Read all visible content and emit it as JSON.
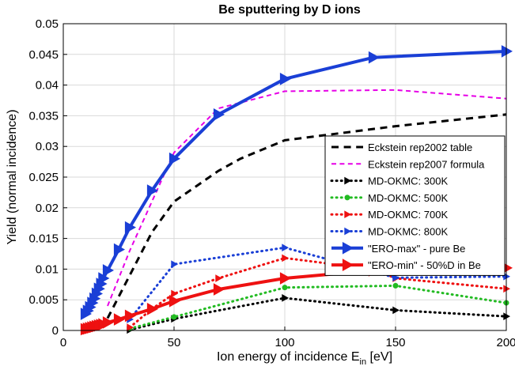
{
  "chart_data": {
    "type": "line",
    "title": "Be sputtering by D ions",
    "xlabel": "Ion energy of incidence E",
    "xlabel_sub": "in",
    "xlabel_unit": " [eV]",
    "ylabel": "Yield (normal incidence)",
    "xlim": [
      0,
      200
    ],
    "ylim": [
      0,
      0.05
    ],
    "xticks": [
      0,
      50,
      100,
      150,
      200
    ],
    "xtick_labels": [
      "0",
      "50",
      "100",
      "150",
      "200"
    ],
    "yticks": [
      0,
      0.005,
      0.01,
      0.015,
      0.02,
      0.025,
      0.03,
      0.035,
      0.04,
      0.045,
      0.05
    ],
    "ytick_labels": [
      "0",
      "0.005",
      "0.01",
      "0.015",
      "0.02",
      "0.025",
      "0.03",
      "0.035",
      "0.04",
      "0.045",
      "0.05"
    ],
    "grid": true,
    "legend_position": "right",
    "series": [
      {
        "name": "Eckstein rep2002 table",
        "color": "#000000",
        "style": "dashed",
        "width": 3,
        "marker": "none",
        "x": [
          20,
          30,
          40,
          50,
          60,
          70,
          80,
          100,
          150,
          200
        ],
        "y": [
          0.002,
          0.009,
          0.016,
          0.021,
          0.0235,
          0.026,
          0.028,
          0.031,
          0.0333,
          0.0352
        ]
      },
      {
        "name": "Eckstein rep2007 formula",
        "color": "#e600e6",
        "style": "dashed",
        "width": 2,
        "marker": "none",
        "x": [
          20,
          30,
          40,
          50,
          70,
          100,
          150,
          200
        ],
        "y": [
          0.004,
          0.013,
          0.021,
          0.029,
          0.0362,
          0.039,
          0.0392,
          0.0378
        ]
      },
      {
        "name": "MD-OKMC: 300K",
        "color": "#000000",
        "style": "dotted",
        "width": 3,
        "marker": "tri",
        "markerSize": 4,
        "x": [
          30,
          50,
          100,
          150,
          200
        ],
        "y": [
          0.0001,
          0.0019,
          0.0053,
          0.0033,
          0.0023
        ]
      },
      {
        "name": "MD-OKMC: 500K",
        "color": "#22bb22",
        "style": "dotted",
        "width": 3,
        "marker": "dot",
        "markerSize": 3.5,
        "x": [
          30,
          50,
          100,
          150,
          200
        ],
        "y": [
          0.0003,
          0.0022,
          0.007,
          0.0073,
          0.0045
        ]
      },
      {
        "name": "MD-OKMC: 700K",
        "color": "#ee1111",
        "style": "dotted",
        "width": 3,
        "marker": "tri",
        "markerSize": 4,
        "x": [
          30,
          40,
          50,
          70,
          100,
          140,
          150,
          200
        ],
        "y": [
          0.0005,
          0.0035,
          0.006,
          0.0085,
          0.0118,
          0.01,
          0.0085,
          0.0068
        ]
      },
      {
        "name": "MD-OKMC: 800K",
        "color": "#1a3fd6",
        "style": "dotted",
        "width": 3,
        "marker": "tri",
        "markerSize": 4,
        "x": [
          30,
          50,
          100,
          150,
          200
        ],
        "y": [
          0.0018,
          0.0108,
          0.0135,
          0.0086,
          0.0088
        ]
      },
      {
        "name": "\"ERO-max\" - pure Be",
        "color": "#1a3fd6",
        "style": "solid",
        "width": 4,
        "marker": "tri",
        "markerSize": 7,
        "x": [
          10,
          11,
          12,
          13,
          14,
          15,
          16,
          17,
          18,
          20,
          25,
          30,
          40,
          50,
          70,
          100,
          140,
          200
        ],
        "y": [
          0.0027,
          0.0032,
          0.0038,
          0.0045,
          0.0052,
          0.006,
          0.0068,
          0.0076,
          0.0085,
          0.0098,
          0.0132,
          0.0168,
          0.0228,
          0.028,
          0.0352,
          0.041,
          0.0445,
          0.0455
        ]
      },
      {
        "name": "\"ERO-min\" - 50%D in Be",
        "color": "#ee1111",
        "style": "solid",
        "width": 4,
        "marker": "tri",
        "markerSize": 7,
        "x": [
          10,
          11,
          12,
          13,
          14,
          15,
          16,
          17,
          18,
          20,
          25,
          30,
          40,
          50,
          70,
          100,
          140,
          200
        ],
        "y": [
          0.0002,
          0.0003,
          0.0004,
          0.0005,
          0.0006,
          0.0007,
          0.0008,
          0.0009,
          0.001,
          0.0013,
          0.0018,
          0.0024,
          0.0035,
          0.0048,
          0.0067,
          0.0085,
          0.0098,
          0.0102
        ]
      }
    ]
  }
}
